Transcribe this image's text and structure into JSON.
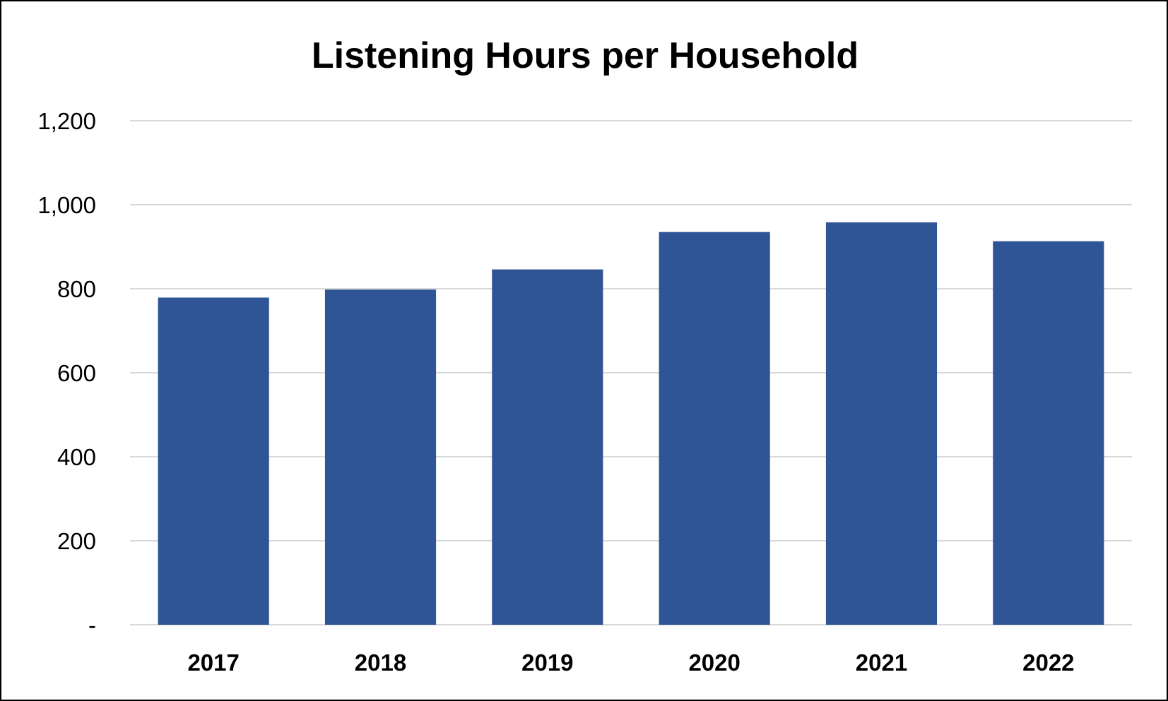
{
  "chart_data": {
    "type": "bar",
    "title": "Listening Hours per Household",
    "xlabel": "",
    "ylabel": "",
    "categories": [
      "2017",
      "2018",
      "2019",
      "2020",
      "2021",
      "2022"
    ],
    "values": [
      779,
      798,
      846,
      935,
      958,
      913
    ],
    "ylim": [
      0,
      1200
    ],
    "yticks": [
      0,
      200,
      400,
      600,
      800,
      1000,
      1200
    ],
    "ytick_labels": [
      "-",
      "200",
      "400",
      "600",
      "800",
      "1,000",
      "1,200"
    ],
    "bar_color": "#2F5597",
    "grid": true,
    "grid_color": "#D9D9D9",
    "legend": false
  }
}
